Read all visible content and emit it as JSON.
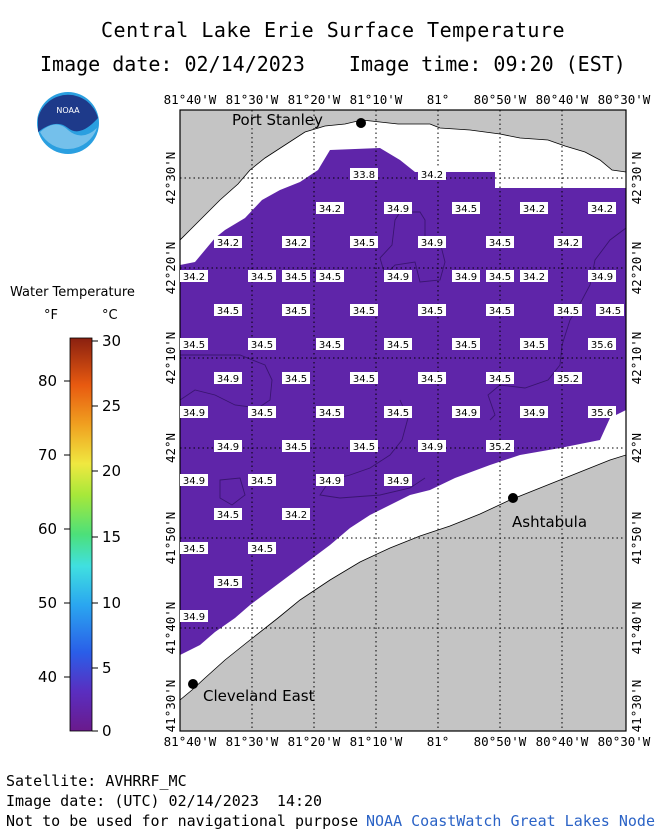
{
  "header": {
    "title": "Central Lake Erie Surface Temperature",
    "image_date": "Image date: 02/14/2023",
    "image_time": "Image time: 09:20 (EST)"
  },
  "logo": {
    "text": "NOAA"
  },
  "map": {
    "lon_labels": [
      "81°40'W",
      "81°30'W",
      "81°20'W",
      "81°10'W",
      "81°",
      "80°50'W",
      "80°40'W",
      "80°30'W"
    ],
    "lat_labels": [
      "42°30'N",
      "42°20'N",
      "42°10'N",
      "42°N",
      "41°50'N",
      "41°40'N",
      "41°30'N"
    ],
    "cities": [
      {
        "name": "Port Stanley"
      },
      {
        "name": "Ashtabula"
      },
      {
        "name": "Cleveland East"
      }
    ],
    "temps": [
      {
        "v": "33.8"
      },
      {
        "v": "34.2"
      },
      {
        "v": "34.2"
      },
      {
        "v": "34.9"
      },
      {
        "v": "34.5"
      },
      {
        "v": "34.2"
      },
      {
        "v": "34.2"
      },
      {
        "v": "34.2"
      },
      {
        "v": "34.2"
      },
      {
        "v": "34.5"
      },
      {
        "v": "34.9"
      },
      {
        "v": "34.5"
      },
      {
        "v": "34.2"
      },
      {
        "v": "34.2"
      },
      {
        "v": "34.5"
      },
      {
        "v": "34.5"
      },
      {
        "v": "34.5"
      },
      {
        "v": "34.9"
      },
      {
        "v": "34.9"
      },
      {
        "v": "34.5"
      },
      {
        "v": "34.2"
      },
      {
        "v": "34.9"
      },
      {
        "v": "34.5"
      },
      {
        "v": "34.5"
      },
      {
        "v": "34.5"
      },
      {
        "v": "34.5"
      },
      {
        "v": "34.5"
      },
      {
        "v": "34.5"
      },
      {
        "v": "34.5"
      },
      {
        "v": "34.5"
      },
      {
        "v": "34.5"
      },
      {
        "v": "34.5"
      },
      {
        "v": "34.5"
      },
      {
        "v": "34.5"
      },
      {
        "v": "34.5"
      },
      {
        "v": "35.6"
      },
      {
        "v": "34.9"
      },
      {
        "v": "34.5"
      },
      {
        "v": "34.5"
      },
      {
        "v": "34.5"
      },
      {
        "v": "34.5"
      },
      {
        "v": "35.2"
      },
      {
        "v": "34.9"
      },
      {
        "v": "34.5"
      },
      {
        "v": "34.5"
      },
      {
        "v": "34.5"
      },
      {
        "v": "34.9"
      },
      {
        "v": "34.9"
      },
      {
        "v": "35.6"
      },
      {
        "v": "34.9"
      },
      {
        "v": "34.5"
      },
      {
        "v": "34.5"
      },
      {
        "v": "34.9"
      },
      {
        "v": "35.2"
      },
      {
        "v": "34.9"
      },
      {
        "v": "34.5"
      },
      {
        "v": "34.9"
      },
      {
        "v": "34.9"
      },
      {
        "v": "34.5"
      },
      {
        "v": "34.2"
      },
      {
        "v": "34.5"
      },
      {
        "v": "34.5"
      },
      {
        "v": "34.5"
      },
      {
        "v": "34.9"
      }
    ]
  },
  "legend": {
    "title": "Water Temperature",
    "f_unit": "°F",
    "c_unit": "°C",
    "f_ticks": [
      "80",
      "70",
      "60",
      "50",
      "40"
    ],
    "c_ticks": [
      "30",
      "25",
      "20",
      "15",
      "10",
      "5",
      "0"
    ]
  },
  "footer": {
    "satellite": "Satellite: AVHRRF_MC",
    "utc_date": "Image date: (UTC) 02/14/2023  14:20",
    "warning": "Not to be used for navigational purpose",
    "credit": "NOAA CoastWatch Great Lakes Node"
  },
  "colors": {
    "water": "#5f25a9",
    "land": "#c4c4c4",
    "ice": "#ffffff"
  }
}
